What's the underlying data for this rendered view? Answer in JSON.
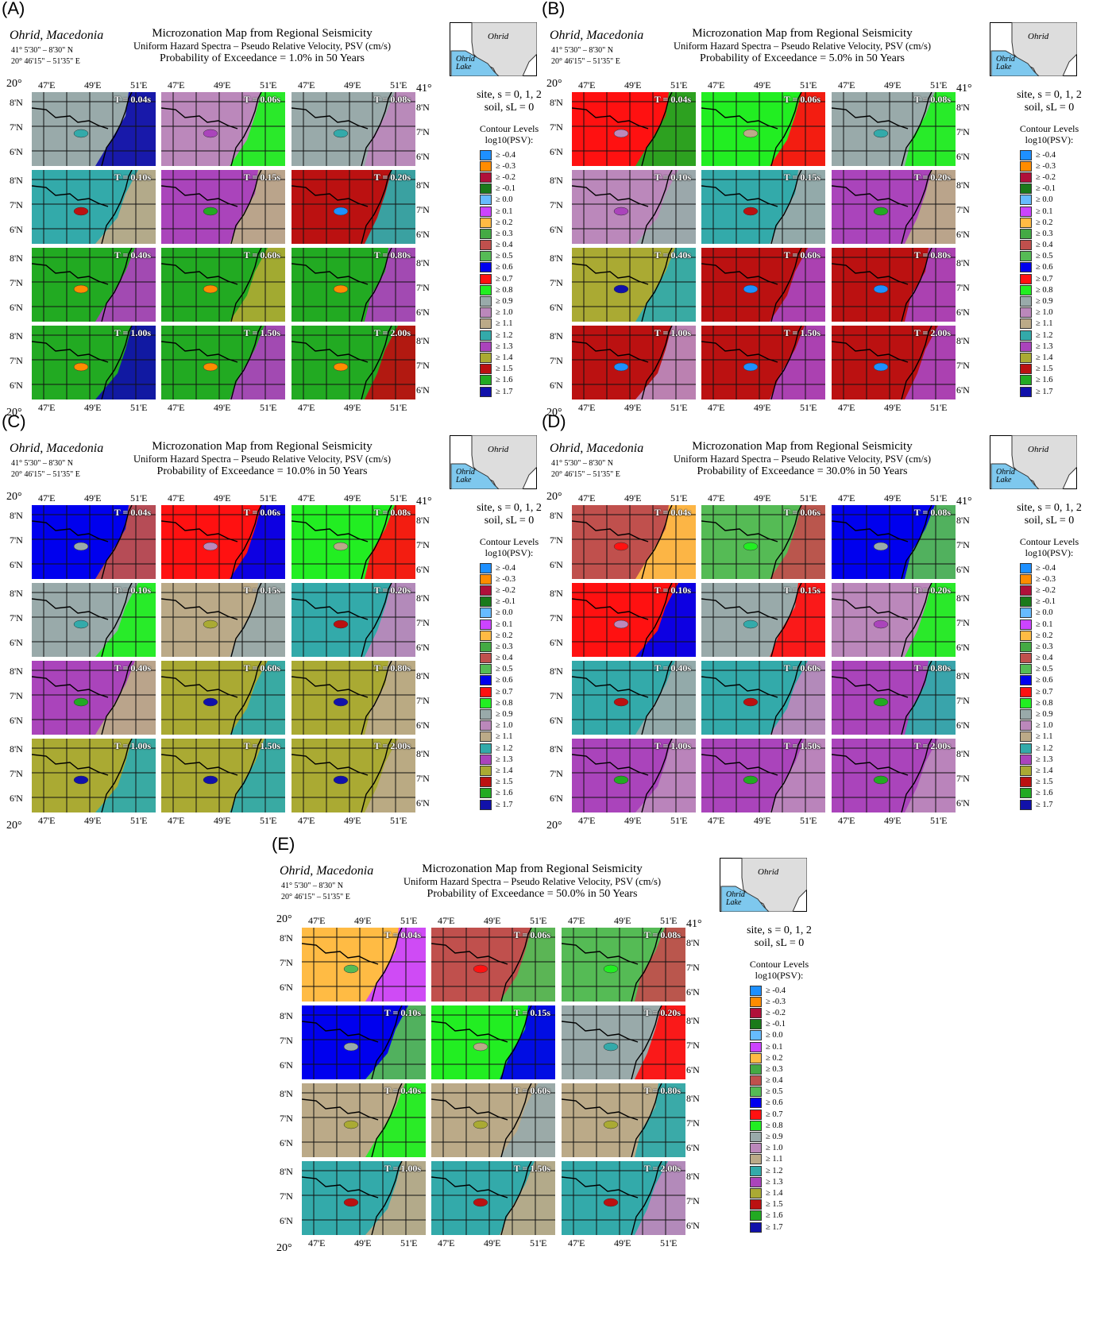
{
  "common": {
    "place": "Ohrid, Macedonia",
    "lat_range": "41° 5'30\" – 8'30\" N",
    "lon_range": "20° 46'15\" – 51'35\" E",
    "title": "Microzonation Map from Regional Seismicity",
    "subtitle": "Uniform Hazard Spectra – Pseudo Relative Velocity, PSV (cm/s)",
    "site_line1": "site, s = 0, 1, 2",
    "site_line2": "soil, sL = 0",
    "contour_title1": "Contour Levels",
    "contour_title2": "log10(PSV):",
    "inset_town": "Ohrid",
    "inset_lake": "Ohrid Lake",
    "lat_labels": [
      "8'N",
      "7'N",
      "6'N"
    ],
    "lon_labels": [
      "47'E",
      "49'E",
      "51'E"
    ],
    "origin_lat": "41°",
    "origin_lon": "20°",
    "periods": [
      "T = 0.04s",
      "T = 0.06s",
      "T = 0.08s",
      "T = 0.10s",
      "T = 0.15s",
      "T = 0.20s",
      "T = 0.40s",
      "T = 0.60s",
      "T = 0.80s",
      "T = 1.00s",
      "T = 1.50s",
      "T = 2.00s"
    ],
    "legend": [
      {
        "label": "≥ -0.4",
        "color": "#1e90ff"
      },
      {
        "label": "≥ -0.3",
        "color": "#ff8c00"
      },
      {
        "label": "≥ -0.2",
        "color": "#b0103a"
      },
      {
        "label": "≥ -0.1",
        "color": "#1a7a1a"
      },
      {
        "label": "≥ 0.0",
        "color": "#66bbff"
      },
      {
        "label": "≥ 0.1",
        "color": "#cc44ff"
      },
      {
        "label": "≥ 0.2",
        "color": "#ffbb44"
      },
      {
        "label": "≥ 0.3",
        "color": "#44aa44"
      },
      {
        "label": "≥ 0.4",
        "color": "#c0504d"
      },
      {
        "label": "≥ 0.5",
        "color": "#55bb55"
      },
      {
        "label": "≥ 0.6",
        "color": "#0000ee"
      },
      {
        "label": "≥ 0.7",
        "color": "#ff1111"
      },
      {
        "label": "≥ 0.8",
        "color": "#22ee22"
      },
      {
        "label": "≥ 0.9",
        "color": "#99aaaa"
      },
      {
        "label": "≥ 1.0",
        "color": "#bb88bb"
      },
      {
        "label": "≥ 1.1",
        "color": "#bbaa88"
      },
      {
        "label": "≥ 1.2",
        "color": "#33aaaa"
      },
      {
        "label": "≥ 1.3",
        "color": "#aa44bb"
      },
      {
        "label": "≥ 1.4",
        "color": "#aaaa33"
      },
      {
        "label": "≥ 1.5",
        "color": "#bb1111"
      },
      {
        "label": "≥ 1.6",
        "color": "#22aa22"
      },
      {
        "label": "≥ 1.7",
        "color": "#1111aa"
      }
    ]
  },
  "panels": [
    {
      "letter": "(A)",
      "probability": "Probability of Exceedance = 1.0% in 50 Years",
      "maps": [
        [
          13,
          21
        ],
        [
          14,
          12
        ],
        [
          13,
          14
        ],
        [
          16,
          15
        ],
        [
          17,
          15
        ],
        [
          19,
          16
        ],
        [
          20,
          17
        ],
        [
          20,
          18
        ],
        [
          20,
          17
        ],
        [
          20,
          21
        ],
        [
          20,
          17
        ],
        [
          20,
          19
        ]
      ]
    },
    {
      "letter": "(B)",
      "probability": "Probability of Exceedance = 5.0% in 50 Years",
      "maps": [
        [
          11,
          20
        ],
        [
          12,
          11
        ],
        [
          13,
          12
        ],
        [
          14,
          13
        ],
        [
          16,
          13
        ],
        [
          17,
          15
        ],
        [
          18,
          16
        ],
        [
          19,
          17
        ],
        [
          19,
          17
        ],
        [
          19,
          14
        ],
        [
          19,
          17
        ],
        [
          19,
          17
        ]
      ]
    },
    {
      "letter": "(C)",
      "probability": "Probability of Exceedance = 10.0% in 50 Years",
      "maps": [
        [
          10,
          8
        ],
        [
          11,
          10
        ],
        [
          12,
          11
        ],
        [
          13,
          12
        ],
        [
          15,
          13
        ],
        [
          16,
          14
        ],
        [
          17,
          15
        ],
        [
          18,
          16
        ],
        [
          18,
          15
        ],
        [
          18,
          16
        ],
        [
          18,
          16
        ],
        [
          18,
          15
        ]
      ]
    },
    {
      "letter": "(D)",
      "probability": "Probability of Exceedance = 30.0% in 50 Years",
      "maps": [
        [
          8,
          6
        ],
        [
          9,
          8
        ],
        [
          10,
          9
        ],
        [
          11,
          10
        ],
        [
          13,
          11
        ],
        [
          14,
          12
        ],
        [
          16,
          13
        ],
        [
          16,
          14
        ],
        [
          17,
          16
        ],
        [
          17,
          14
        ],
        [
          17,
          14
        ],
        [
          17,
          14
        ]
      ]
    },
    {
      "letter": "(E)",
      "probability": "Probability of Exceedance = 50.0% in 50 Years",
      "maps": [
        [
          6,
          5
        ],
        [
          8,
          9
        ],
        [
          9,
          8
        ],
        [
          10,
          9
        ],
        [
          12,
          10
        ],
        [
          13,
          11
        ],
        [
          15,
          12
        ],
        [
          15,
          13
        ],
        [
          15,
          16
        ],
        [
          16,
          15
        ],
        [
          16,
          15
        ],
        [
          16,
          14
        ]
      ]
    }
  ]
}
